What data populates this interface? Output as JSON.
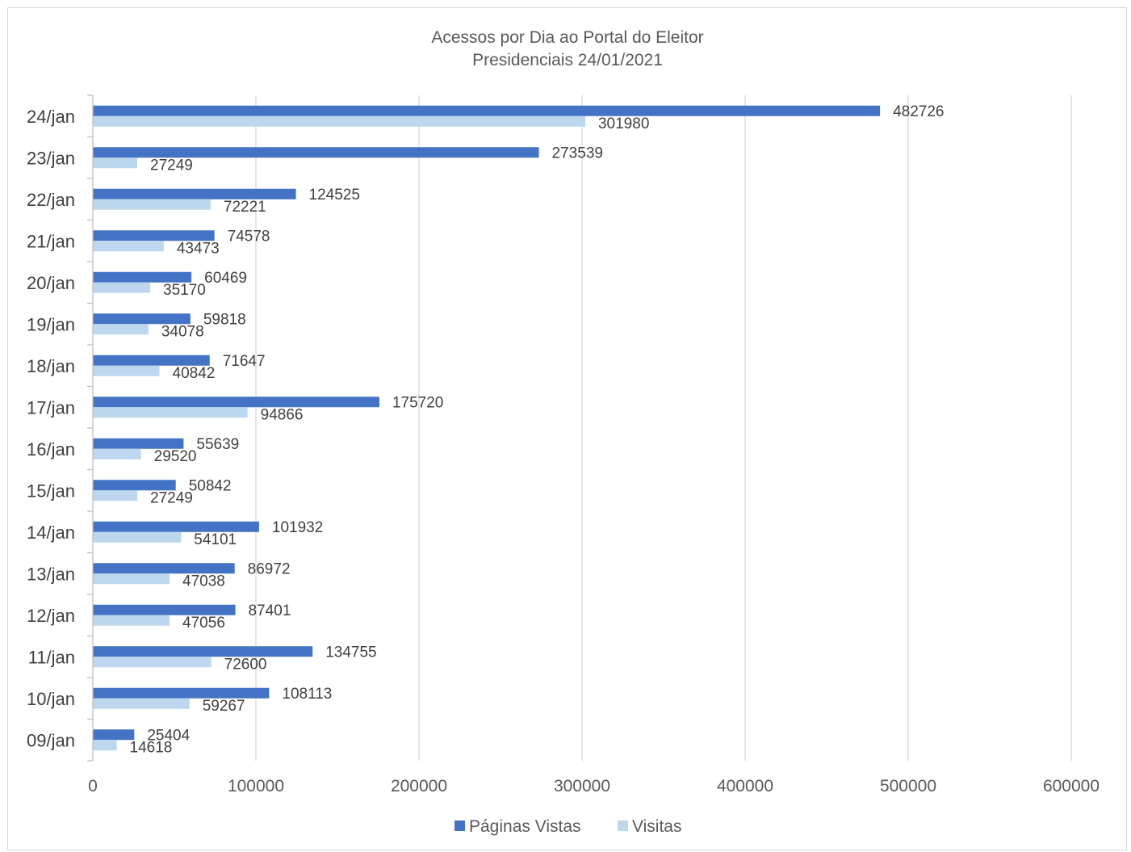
{
  "chart_data": {
    "type": "bar",
    "orientation": "horizontal",
    "title": "Acessos por Dia ao Portal do Eleitor",
    "subtitle": "Presidenciais 24/01/2021",
    "categories": [
      "24/jan",
      "23/jan",
      "22/jan",
      "21/jan",
      "20/jan",
      "19/jan",
      "18/jan",
      "17/jan",
      "16/jan",
      "15/jan",
      "14/jan",
      "13/jan",
      "12/jan",
      "11/jan",
      "10/jan",
      "09/jan"
    ],
    "series": [
      {
        "name": "Páginas Vistas",
        "color": "#4472c4",
        "values": [
          482726,
          273539,
          124525,
          74578,
          60469,
          59818,
          71647,
          175720,
          55639,
          50842,
          101932,
          86972,
          87401,
          134755,
          108113,
          25404
        ]
      },
      {
        "name": "Visitas",
        "color": "#bdd7ee",
        "values": [
          301980,
          27249,
          72221,
          43473,
          35170,
          34078,
          40842,
          94866,
          29520,
          27249,
          54101,
          47038,
          47056,
          72600,
          59267,
          14618
        ]
      }
    ],
    "xlim": [
      0,
      600000
    ],
    "xticks": [
      "0",
      "100000",
      "200000",
      "300000",
      "400000",
      "500000",
      "600000"
    ],
    "grid": true,
    "legend_position": "bottom",
    "data_labels": true
  }
}
